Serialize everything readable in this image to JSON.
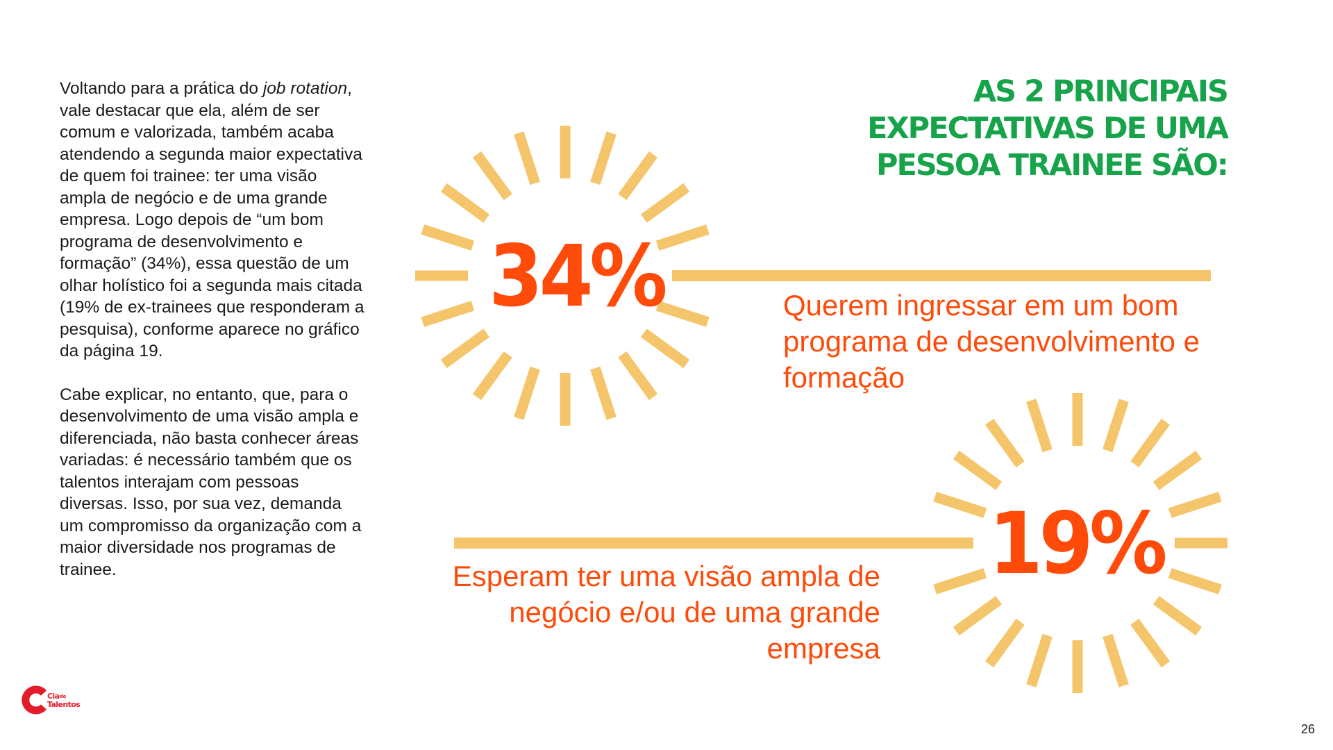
{
  "body_text": {
    "p1_part1": "Voltando para a prática do ",
    "p1_emph": "job rotation",
    "p1_part2": ", vale destacar que ela, além de ser comum e valorizada, também acaba atendendo a segunda maior expectativa de quem foi trainee: ter uma visão ampla de negócio e de uma grande empresa. Logo depois de “um bom programa de desenvolvimento e formação” (34%), essa questão de um olhar holístico foi a segunda mais citada (19% de ex-trainees que responderam a pesquisa), conforme aparece no gráfico da página 19.",
    "p2": "Cabe explicar, no entanto, que, para o desenvolvimento de uma visão ampla e diferenciada, não basta conhecer áreas variadas: é necessário também que os talentos interajam com pessoas diversas. Isso, por sua vez, demanda um compromisso da organização com a maior diversidade nos programas de trainee."
  },
  "heading": {
    "line1": "AS 2 PRINCIPAIS",
    "line2": "EXPECTATIVAS DE UMA",
    "line3": "PESSOA TRAINEE SÃO:"
  },
  "stats": [
    {
      "value": "34%",
      "caption": "Querem ingressar em um bom programa de desenvolvimento e formação"
    },
    {
      "value": "19%",
      "caption": "Esperam ter uma visão ampla de negócio e/ou de uma grande empresa"
    }
  ],
  "logo": {
    "line1": "Cia",
    "line1_small": "de",
    "line2": "Talentos"
  },
  "page_number": "26",
  "colors": {
    "heading_green": "#16a34a",
    "accent_orange": "#ff4b0a",
    "ray_yellow": "#f5c56b",
    "logo_red": "#e11d2a"
  }
}
